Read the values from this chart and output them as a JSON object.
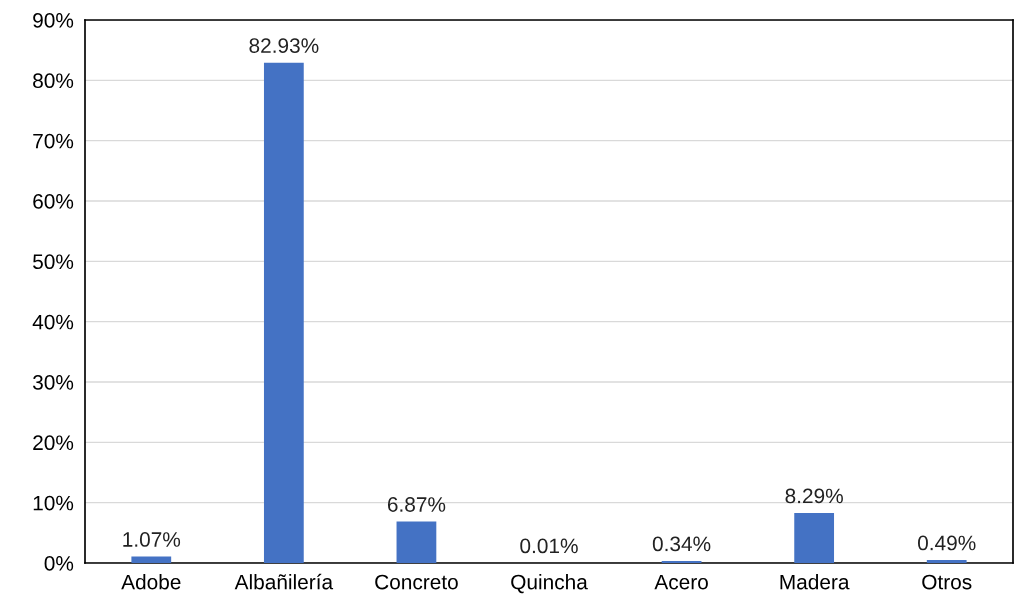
{
  "chart_data": {
    "type": "bar",
    "categories": [
      "Adobe",
      "Albañilería",
      "Concreto",
      "Quincha",
      "Acero",
      "Madera",
      "Otros"
    ],
    "values": [
      1.07,
      82.93,
      6.87,
      0.01,
      0.34,
      8.29,
      0.49
    ],
    "value_labels": [
      "1.07%",
      "82.93%",
      "6.87%",
      "0.01%",
      "0.34%",
      "8.29%",
      "0.49%"
    ],
    "color": "#4472c4",
    "ylim": [
      0,
      90
    ],
    "yticks": [
      {
        "value": 0,
        "label": "0%"
      },
      {
        "value": 10,
        "label": "10%"
      },
      {
        "value": 20,
        "label": "20%"
      },
      {
        "value": 30,
        "label": "30%"
      },
      {
        "value": 40,
        "label": "40%"
      },
      {
        "value": 50,
        "label": "50%"
      },
      {
        "value": 60,
        "label": "60%"
      },
      {
        "value": 70,
        "label": "70%"
      },
      {
        "value": 80,
        "label": "80%"
      },
      {
        "value": 90,
        "label": "90%"
      }
    ],
    "grid": "y"
  }
}
